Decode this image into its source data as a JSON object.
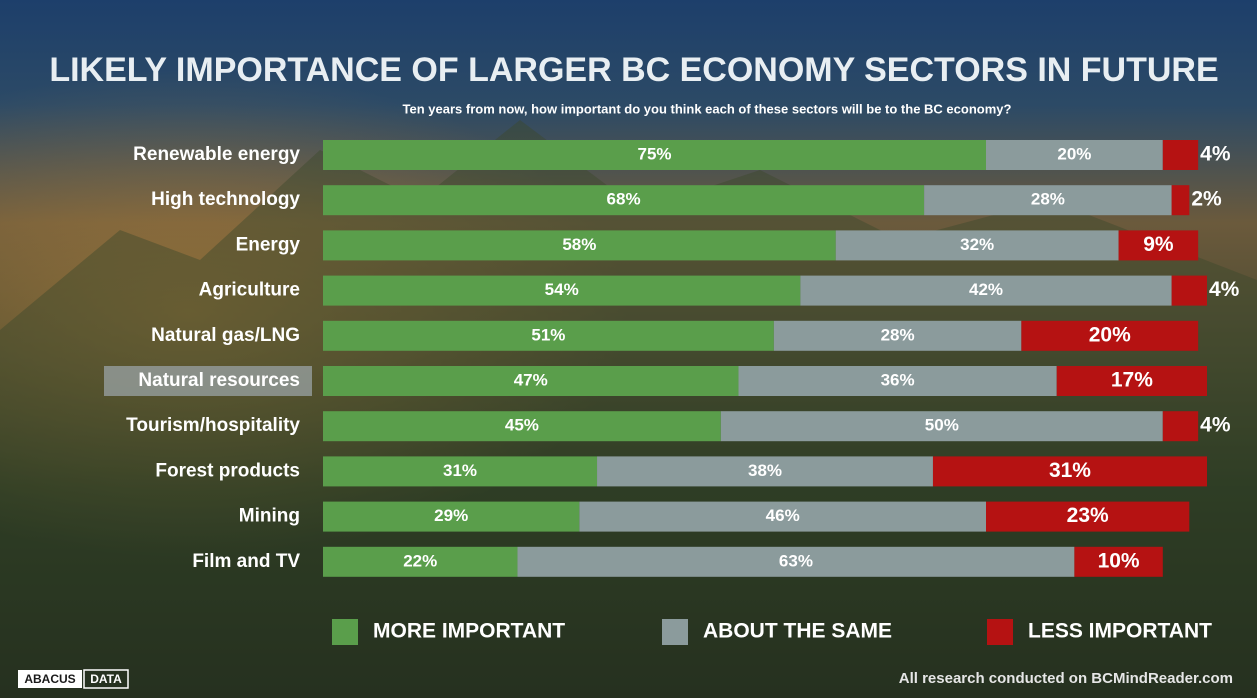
{
  "chart_data": {
    "type": "stacked-barh",
    "title": "LIKELY IMPORTANCE OF LARGER BC ECONOMY SECTORS IN FUTURE",
    "subtitle": "Ten years from now, how important do you think each of these sectors will be to the BC economy?",
    "categories": [
      "Renewable energy",
      "High technology",
      "Energy",
      "Agriculture",
      "Natural gas/LNG",
      "Natural resources",
      "Tourism/hospitality",
      "Forest products",
      "Mining",
      "Film and TV"
    ],
    "highlight": 5,
    "xlim": [
      0,
      100
    ],
    "series": [
      {
        "name": "MORE IMPORTANT",
        "color": "#5a9e4b",
        "values": [
          75,
          68,
          58,
          54,
          51,
          47,
          45,
          31,
          29,
          22
        ],
        "value_labels": [
          "75%",
          "68%",
          "58%",
          "54%",
          "51%",
          "47%",
          "45%",
          "31%",
          "29%",
          "22%"
        ]
      },
      {
        "name": "ABOUT THE SAME",
        "color": "#8b9b9c",
        "values": [
          20,
          28,
          32,
          42,
          28,
          36,
          50,
          38,
          46,
          63
        ],
        "value_labels": [
          "20%",
          "28%",
          "32%",
          "42%",
          "28%",
          "36%",
          "50%",
          "38%",
          "46%",
          "63%"
        ]
      },
      {
        "name": "LESS IMPORTANT",
        "color": "#b51212",
        "values": [
          4,
          2,
          9,
          4,
          20,
          17,
          4,
          31,
          23,
          10
        ],
        "value_labels": [
          "4%",
          "2%",
          "9%",
          "4%",
          "20%",
          "17%",
          "4%",
          "31%",
          "23%",
          "10%"
        ]
      }
    ],
    "logo_words": [
      "ABACUS",
      "DATA"
    ],
    "source": "All research conducted on BCMindReader.com"
  }
}
